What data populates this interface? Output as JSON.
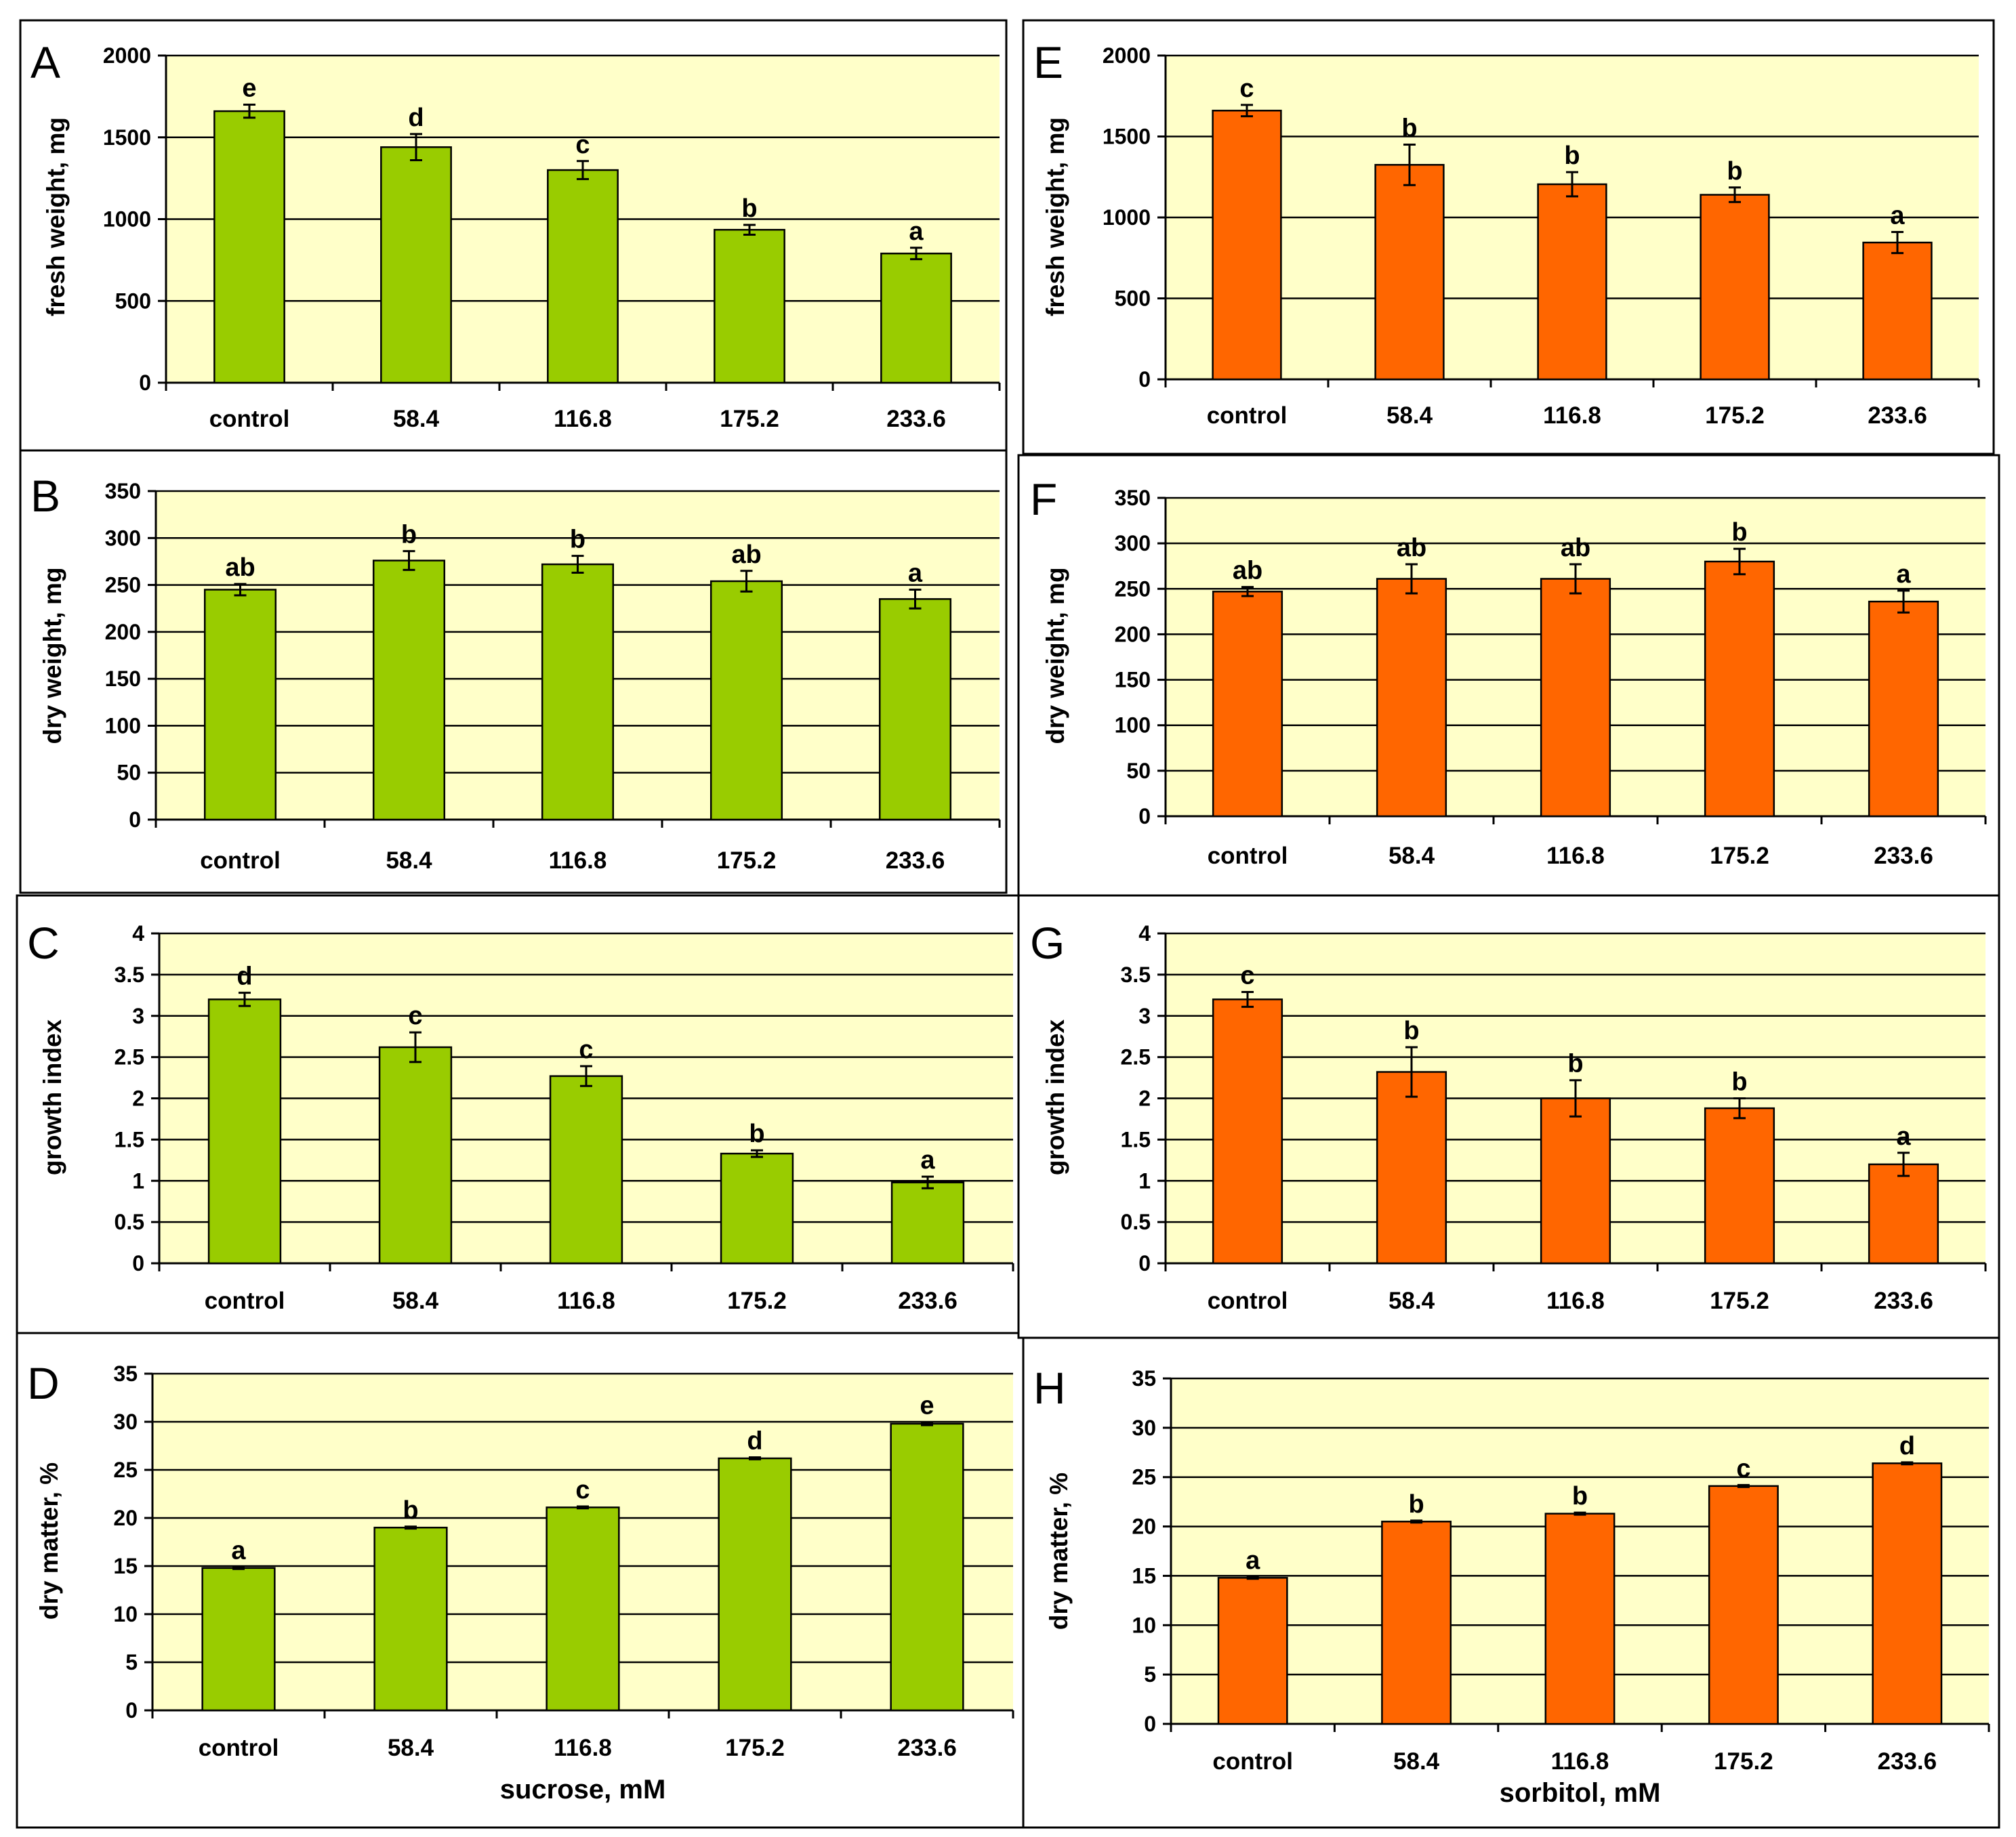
{
  "colors": {
    "sucrose_bar": "#99cc00",
    "sorbitol_bar": "#ff6600",
    "plot_background": "#ffffc9",
    "axis": "#000000"
  },
  "chart_data": [
    {
      "panel": "A",
      "type": "bar",
      "column": "sucrose",
      "ylabel": "fresh weight, mg",
      "xlabel": "",
      "ylim": [
        0,
        2000
      ],
      "yticks": [
        0,
        500,
        1000,
        1500,
        2000
      ],
      "categories": [
        "control",
        "58.4",
        "116.8",
        "175.2",
        "233.6"
      ],
      "values": [
        1660,
        1440,
        1300,
        935,
        790
      ],
      "errors": [
        40,
        80,
        55,
        30,
        35
      ],
      "labels": [
        "e",
        "d",
        "c",
        "b",
        "a"
      ]
    },
    {
      "panel": "B",
      "type": "bar",
      "column": "sucrose",
      "ylabel": "dry weight, mg",
      "xlabel": "",
      "ylim": [
        0,
        350
      ],
      "yticks": [
        0,
        50,
        100,
        150,
        200,
        250,
        300,
        350
      ],
      "categories": [
        "control",
        "58.4",
        "116.8",
        "175.2",
        "233.6"
      ],
      "values": [
        245,
        276,
        272,
        254,
        235
      ],
      "errors": [
        6,
        10,
        9,
        11,
        10
      ],
      "labels": [
        "ab",
        "b",
        "b",
        "ab",
        "a"
      ]
    },
    {
      "panel": "C",
      "type": "bar",
      "column": "sucrose",
      "ylabel": "growth index",
      "xlabel": "",
      "ylim": [
        0,
        4
      ],
      "yticks": [
        0,
        0.5,
        1,
        1.5,
        2,
        2.5,
        3,
        3.5,
        4
      ],
      "categories": [
        "control",
        "58.4",
        "116.8",
        "175.2",
        "233.6"
      ],
      "values": [
        3.2,
        2.62,
        2.27,
        1.33,
        0.98
      ],
      "errors": [
        0.08,
        0.18,
        0.12,
        0.04,
        0.07
      ],
      "labels": [
        "d",
        "c",
        "c",
        "b",
        "a"
      ]
    },
    {
      "panel": "D",
      "type": "bar",
      "column": "sucrose",
      "ylabel": "dry matter, %",
      "xlabel": "sucrose, mM",
      "ylim": [
        0,
        35
      ],
      "yticks": [
        0,
        5,
        10,
        15,
        20,
        25,
        30,
        35
      ],
      "categories": [
        "control",
        "58.4",
        "116.8",
        "175.2",
        "233.6"
      ],
      "values": [
        14.8,
        19.0,
        21.1,
        26.2,
        29.8
      ],
      "errors": [
        0.1,
        0.1,
        0.1,
        0.1,
        0.15
      ],
      "labels": [
        "a",
        "b",
        "c",
        "d",
        "e"
      ]
    },
    {
      "panel": "E",
      "type": "bar",
      "column": "sorbitol",
      "ylabel": "fresh weight, mg",
      "xlabel": "",
      "ylim": [
        0,
        2000
      ],
      "yticks": [
        0,
        500,
        1000,
        1500,
        2000
      ],
      "categories": [
        "control",
        "58.4",
        "116.8",
        "175.2",
        "233.6"
      ],
      "values": [
        1660,
        1325,
        1205,
        1140,
        845
      ],
      "errors": [
        35,
        125,
        75,
        45,
        65
      ],
      "labels": [
        "c",
        "b",
        "b",
        "b",
        "a"
      ]
    },
    {
      "panel": "F",
      "type": "bar",
      "column": "sorbitol",
      "ylabel": "dry weight, mg",
      "xlabel": "",
      "ylim": [
        0,
        350
      ],
      "yticks": [
        0,
        50,
        100,
        150,
        200,
        250,
        300,
        350
      ],
      "categories": [
        "control",
        "58.4",
        "116.8",
        "175.2",
        "233.6"
      ],
      "values": [
        247,
        261,
        261,
        280,
        236
      ],
      "errors": [
        5,
        16,
        16,
        14,
        12
      ],
      "labels": [
        "ab",
        "ab",
        "ab",
        "b",
        "a"
      ]
    },
    {
      "panel": "G",
      "type": "bar",
      "column": "sorbitol",
      "ylabel": "growth index",
      "xlabel": "",
      "ylim": [
        0,
        4
      ],
      "yticks": [
        0,
        0.5,
        1,
        1.5,
        2,
        2.5,
        3,
        3.5,
        4
      ],
      "categories": [
        "control",
        "58.4",
        "116.8",
        "175.2",
        "233.6"
      ],
      "values": [
        3.2,
        2.32,
        2.0,
        1.88,
        1.2
      ],
      "errors": [
        0.09,
        0.3,
        0.22,
        0.12,
        0.14
      ],
      "labels": [
        "c",
        "b",
        "b",
        "b",
        "a"
      ]
    },
    {
      "panel": "H",
      "type": "bar",
      "column": "sorbitol",
      "ylabel": "dry matter, %",
      "xlabel": "sorbitol, mM",
      "ylim": [
        0,
        35
      ],
      "yticks": [
        0,
        5,
        10,
        15,
        20,
        25,
        30,
        35
      ],
      "categories": [
        "control",
        "58.4",
        "116.8",
        "175.2",
        "233.6"
      ],
      "values": [
        14.8,
        20.5,
        21.3,
        24.1,
        26.4
      ],
      "errors": [
        0.1,
        0.1,
        0.1,
        0.1,
        0.1
      ],
      "labels": [
        "a",
        "b",
        "b",
        "c",
        "d"
      ]
    }
  ]
}
